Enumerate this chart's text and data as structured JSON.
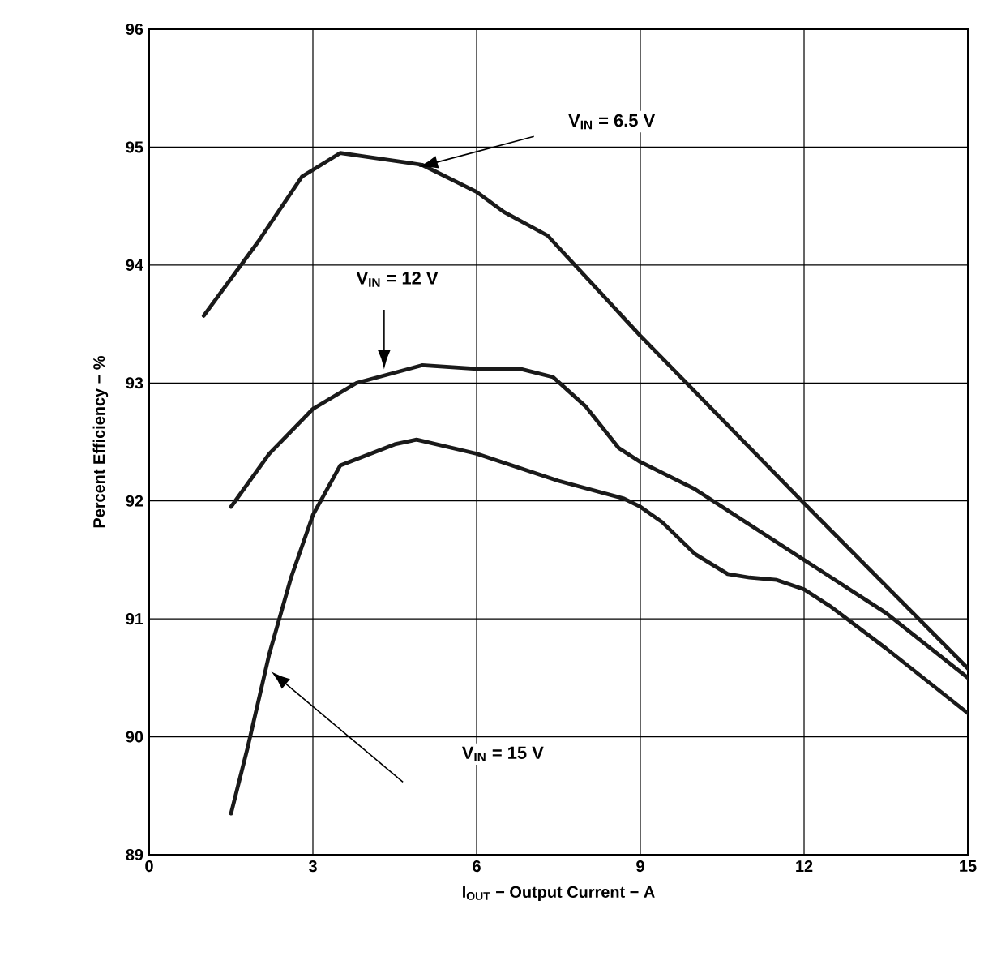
{
  "chart_data": {
    "type": "line",
    "xlabel": "I$_{OUT}$ − Output Current − A",
    "ylabel": "Percent Efficiency − %",
    "xlim": [
      0,
      15
    ],
    "xticks": [
      0,
      3,
      6,
      9,
      12,
      15
    ],
    "ylim": [
      89,
      96
    ],
    "yticks": [
      89,
      90,
      91,
      92,
      93,
      94,
      95,
      96
    ],
    "grid": true,
    "marker": "none",
    "line_style": "solid",
    "series": [
      {
        "color": "#1a1a1a",
        "x": [
          1.0,
          2.0,
          2.8,
          3.5,
          5.0,
          6.0,
          6.5,
          7.3,
          8.0,
          9.0,
          12.0,
          15.0
        ],
        "values": [
          93.57,
          94.2,
          94.75,
          94.95,
          94.85,
          94.62,
          94.45,
          94.25,
          93.9,
          93.4,
          91.98,
          90.58
        ]
      },
      {
        "color": "#1a1a1a",
        "x": [
          1.5,
          2.2,
          3.0,
          3.8,
          5.0,
          6.0,
          6.8,
          7.4,
          8.0,
          8.6,
          9.0,
          10.0,
          12.0,
          13.5,
          15.0
        ],
        "values": [
          91.95,
          92.4,
          92.78,
          93.0,
          93.15,
          93.12,
          93.12,
          93.05,
          92.8,
          92.45,
          92.33,
          92.1,
          91.5,
          91.05,
          90.5
        ]
      },
      {
        "color": "#1a1a1a",
        "x": [
          1.5,
          1.8,
          2.2,
          2.6,
          3.0,
          3.5,
          4.5,
          4.9,
          6.0,
          7.5,
          8.7,
          9.0,
          9.4,
          10.0,
          10.6,
          11.0,
          11.5,
          12.0,
          12.5,
          13.5,
          15.0
        ],
        "values": [
          89.35,
          89.9,
          90.7,
          91.35,
          91.88,
          92.3,
          92.48,
          92.52,
          92.4,
          92.17,
          92.02,
          91.95,
          91.82,
          91.55,
          91.38,
          91.35,
          91.33,
          91.25,
          91.1,
          90.75,
          90.2
        ]
      }
    ],
    "annotations": [
      "V$_{IN}$ = 6.5 V",
      "V$_{IN}$ = 12 V",
      "V$_{IN}$ = 15 V"
    ]
  }
}
